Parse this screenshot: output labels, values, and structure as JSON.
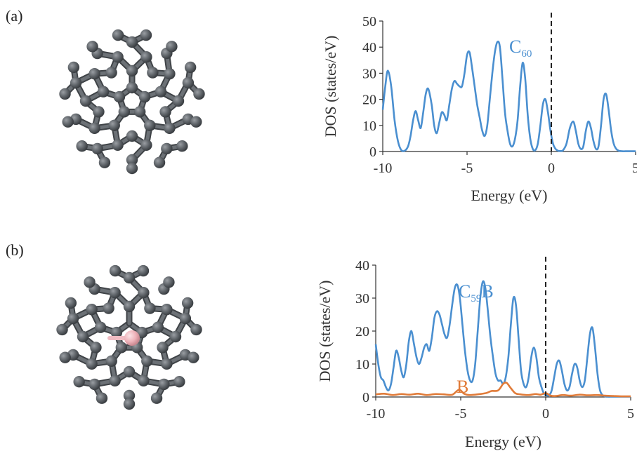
{
  "panels": [
    {
      "label": "(a)",
      "molecule": "C60",
      "chart_data": {
        "type": "line",
        "xlabel": "Energy (eV)",
        "ylabel": "DOS (states/eV)",
        "xlim": [
          -10,
          5
        ],
        "ylim": [
          0,
          50
        ],
        "xticks": [
          -10,
          -5,
          0,
          5
        ],
        "xtick_labels": [
          "-10",
          "-5",
          "0",
          "5"
        ],
        "yticks": [
          0,
          10,
          20,
          30,
          40,
          50
        ],
        "ytick_labels": [
          "0",
          "10",
          "20",
          "30",
          "40",
          "50"
        ],
        "fermi_level": 0,
        "series": [
          {
            "name": "C60",
            "label_main": "C",
            "label_sub": "60",
            "label_suffix": "",
            "color": "#4a8fd0",
            "x": [
              -10.0,
              -9.85,
              -9.7,
              -9.5,
              -9.3,
              -9.1,
              -8.9,
              -8.7,
              -8.5,
              -8.35,
              -8.2,
              -8.05,
              -7.9,
              -7.75,
              -7.6,
              -7.45,
              -7.3,
              -7.1,
              -6.95,
              -6.8,
              -6.65,
              -6.5,
              -6.35,
              -6.2,
              -6.05,
              -5.9,
              -5.75,
              -5.6,
              -5.45,
              -5.3,
              -5.15,
              -5.0,
              -4.85,
              -4.7,
              -4.55,
              -4.4,
              -4.25,
              -4.1,
              -3.95,
              -3.8,
              -3.65,
              -3.5,
              -3.35,
              -3.2,
              -3.05,
              -2.9,
              -2.75,
              -2.6,
              -2.45,
              -2.3,
              -2.15,
              -2.0,
              -1.85,
              -1.7,
              -1.55,
              -1.4,
              -1.25,
              -1.1,
              -0.95,
              -0.8,
              -0.65,
              -0.5,
              -0.35,
              -0.2,
              -0.05,
              0.1,
              0.25,
              0.4,
              0.55,
              0.7,
              0.9,
              1.1,
              1.3,
              1.45,
              1.6,
              1.75,
              1.9,
              2.05,
              2.2,
              2.35,
              2.5,
              2.65,
              2.8,
              2.95,
              3.1,
              3.25,
              3.4,
              3.55,
              3.7,
              3.85,
              4.0,
              4.2,
              4.4,
              4.6,
              4.8,
              5.0
            ],
            "y": [
              16,
              25,
              31,
              25,
              12,
              4,
              0.5,
              0.3,
              2,
              6,
              12,
              15.5,
              12,
              9,
              15,
              22,
              24,
              18,
              10,
              7,
              11,
              15,
              14,
              12,
              18,
              24,
              27,
              26,
              25,
              25,
              30,
              37,
              38,
              32,
              25,
              18,
              13,
              8,
              6,
              10,
              20,
              30,
              38,
              42,
              40,
              28,
              15,
              8,
              3,
              2,
              5,
              12,
              25,
              34,
              28,
              14,
              5,
              1,
              0.5,
              3,
              10,
              18,
              20,
              15,
              8,
              3,
              1,
              0.3,
              0.2,
              0.5,
              3,
              9,
              11.5,
              8,
              3,
              1,
              2,
              8,
              11.5,
              9,
              4,
              1,
              2,
              10,
              20,
              22,
              16,
              8,
              3,
              1,
              0.3,
              0.1,
              0.1,
              0.1,
              0.1,
              0.1
            ]
          }
        ]
      }
    },
    {
      "label": "(b)",
      "molecule": "C59B",
      "chart_data": {
        "type": "line",
        "xlabel": "Energy (eV)",
        "ylabel": "DOS (states/eV)",
        "xlim": [
          -10,
          5
        ],
        "ylim": [
          0,
          40
        ],
        "xticks": [
          -10,
          -5,
          0,
          5
        ],
        "xtick_labels": [
          "-10",
          "-5",
          "0",
          "5"
        ],
        "yticks": [
          0,
          10,
          20,
          30,
          40
        ],
        "ytick_labels": [
          "0",
          "10",
          "20",
          "30",
          "40"
        ],
        "fermi_level": 0,
        "series": [
          {
            "name": "C59B",
            "label_main": "C",
            "label_sub": "59",
            "label_suffix": "B",
            "color": "#4a8fd0",
            "x": [
              -10.0,
              -9.85,
              -9.7,
              -9.55,
              -9.4,
              -9.25,
              -9.1,
              -8.95,
              -8.8,
              -8.65,
              -8.5,
              -8.35,
              -8.2,
              -8.05,
              -7.9,
              -7.75,
              -7.6,
              -7.45,
              -7.3,
              -7.15,
              -7.0,
              -6.85,
              -6.7,
              -6.55,
              -6.4,
              -6.25,
              -6.1,
              -5.95,
              -5.8,
              -5.65,
              -5.5,
              -5.35,
              -5.2,
              -5.05,
              -4.9,
              -4.75,
              -4.6,
              -4.45,
              -4.3,
              -4.15,
              -4.0,
              -3.85,
              -3.7,
              -3.55,
              -3.4,
              -3.25,
              -3.1,
              -2.95,
              -2.8,
              -2.65,
              -2.5,
              -2.35,
              -2.2,
              -2.05,
              -1.9,
              -1.75,
              -1.6,
              -1.45,
              -1.3,
              -1.15,
              -1.0,
              -0.85,
              -0.7,
              -0.55,
              -0.4,
              -0.25,
              -0.1,
              0.05,
              0.2,
              0.35,
              0.5,
              0.65,
              0.8,
              0.95,
              1.1,
              1.25,
              1.4,
              1.55,
              1.7,
              1.85,
              2.0,
              2.15,
              2.3,
              2.45,
              2.6,
              2.75,
              2.9,
              3.05,
              3.2,
              3.35,
              3.5,
              3.65,
              3.8,
              3.95,
              4.1,
              4.3,
              4.5,
              4.7,
              5.0
            ],
            "y": [
              16,
              10,
              6,
              5,
              3,
              2,
              4,
              9,
              14,
              12,
              8,
              6,
              10,
              17,
              20,
              16,
              12,
              10,
              12,
              15,
              16,
              14,
              18,
              24,
              26,
              25,
              22,
              19,
              18,
              22,
              28,
              33,
              34,
              30,
              22,
              14,
              8,
              5,
              5,
              10,
              20,
              30,
              35,
              33,
              26,
              18,
              12,
              7,
              5,
              5,
              4,
              6,
              12,
              22,
              30,
              28,
              18,
              8,
              4,
              3,
              6,
              12,
              15,
              12,
              6,
              3,
              1,
              0.5,
              0.5,
              2,
              6,
              10,
              11,
              8,
              4,
              2,
              3,
              7,
              10,
              9,
              5,
              3,
              5,
              12,
              19,
              21,
              15,
              7,
              2,
              0.5,
              0.2,
              0.1,
              0.1,
              0.1,
              0.1,
              0.1,
              0.1,
              0.1,
              0.1
            ]
          },
          {
            "name": "B",
            "label_main": "B",
            "label_sub": "",
            "label_suffix": "",
            "color": "#e07b39",
            "x": [
              -10.0,
              -9.5,
              -9.0,
              -8.5,
              -8.0,
              -7.5,
              -7.0,
              -6.5,
              -6.0,
              -5.5,
              -5.1,
              -4.8,
              -4.5,
              -4.0,
              -3.5,
              -3.2,
              -2.8,
              -2.5,
              -2.3,
              -2.1,
              -1.8,
              -1.5,
              -1.0,
              -0.6,
              -0.3,
              0.0,
              0.3,
              0.6,
              1.0,
              1.5,
              2.0,
              2.5,
              3.0,
              3.5,
              4.0,
              4.5,
              5.0
            ],
            "y": [
              0.8,
              1.0,
              0.6,
              0.9,
              0.7,
              1.0,
              0.6,
              0.9,
              0.8,
              0.7,
              2.2,
              1.0,
              0.6,
              0.8,
              1.2,
              1.8,
              2.0,
              4.0,
              4.3,
              3.0,
              1.2,
              0.8,
              0.6,
              0.9,
              0.7,
              1.2,
              0.4,
              0.3,
              0.6,
              0.4,
              0.7,
              0.5,
              0.6,
              0.4,
              0.3,
              0.2,
              0.2
            ]
          }
        ]
      }
    }
  ]
}
